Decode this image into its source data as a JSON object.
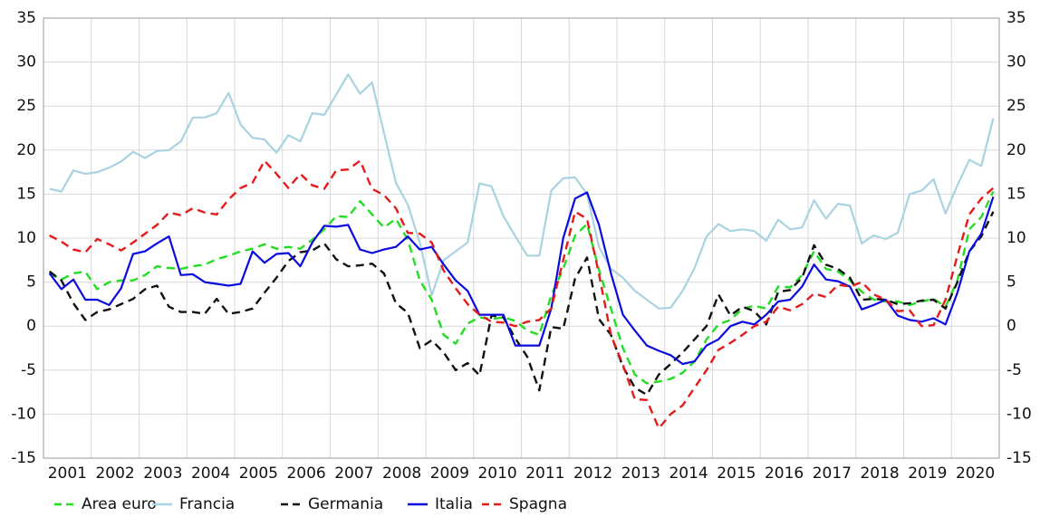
{
  "chart_data": {
    "type": "line",
    "categories": [
      null,
      "2001",
      null,
      null,
      null,
      "2002",
      null,
      null,
      null,
      "2003",
      null,
      null,
      null,
      "2004",
      null,
      null,
      null,
      "2005",
      null,
      null,
      null,
      "2006",
      null,
      null,
      null,
      "2007",
      null,
      null,
      null,
      "2008",
      null,
      null,
      null,
      "2009",
      null,
      null,
      null,
      "2010",
      null,
      null,
      null,
      "2011",
      null,
      null,
      null,
      "2012",
      null,
      null,
      null,
      "2013",
      null,
      null,
      null,
      "2014",
      null,
      null,
      null,
      "2015",
      null,
      null,
      null,
      "2016",
      null,
      null,
      null,
      "2017",
      null,
      null,
      null,
      "2018",
      null,
      null,
      null,
      "2019",
      null,
      null,
      null,
      "2020",
      null,
      null
    ],
    "ylim": [
      -15,
      35
    ],
    "yticks": [
      -15,
      -10,
      -5,
      0,
      5,
      10,
      15,
      20,
      25,
      30,
      35
    ],
    "y2lim": [
      -15,
      35
    ],
    "y2ticks": [
      -15,
      -10,
      -5,
      0,
      5,
      10,
      15,
      20,
      25,
      30,
      35
    ],
    "grid": true,
    "legend": "bottom",
    "series": [
      {
        "name": "Area euro",
        "color": "#22dd22",
        "dashed": true,
        "values": [
          6,
          5.3,
          6,
          6.2,
          4.2,
          5,
          5.2,
          5.2,
          5.8,
          6.8,
          6.6,
          6.5,
          6.8,
          7,
          7.6,
          8,
          8.5,
          8.8,
          9.3,
          8.8,
          9,
          8.8,
          9.8,
          11,
          12.5,
          12.4,
          14.2,
          12.7,
          11.2,
          12.2,
          9.8,
          5.2,
          3,
          -1,
          -2,
          0.3,
          1,
          0.8,
          1,
          0.6,
          -0.5,
          -1,
          3.5,
          6.5,
          10.3,
          11.6,
          6.4,
          2,
          -2.5,
          -5.5,
          -6.5,
          -6.3,
          -6,
          -5.3,
          -4,
          -1.5,
          0.2,
          0.7,
          2,
          2.3,
          2,
          4.5,
          4.4,
          5.8,
          8.5,
          6.5,
          6.2,
          5.2,
          3.9,
          3,
          2.8,
          2.8,
          2.4,
          2.8,
          3.1,
          2.2,
          5.2,
          11,
          12.4,
          15.3
        ]
      },
      {
        "name": "Francia",
        "color": "#a9d3e0",
        "dashed": false,
        "values": [
          15.6,
          15.3,
          17.7,
          17.3,
          17.5,
          18,
          18.7,
          19.8,
          19.1,
          19.9,
          20,
          21,
          23.7,
          23.7,
          24.2,
          26.5,
          22.9,
          21.4,
          21.2,
          19.7,
          21.7,
          21,
          24.2,
          24,
          26.3,
          28.6,
          26.4,
          27.7,
          22,
          16.3,
          13.8,
          9.5,
          3.5,
          7.5,
          8.5,
          9.5,
          16.2,
          15.9,
          12.5,
          10.2,
          8,
          8,
          15.4,
          16.8,
          16.9,
          15,
          9,
          6.5,
          5.5,
          4,
          3,
          2,
          2.1,
          4,
          6.6,
          10.2,
          11.6,
          10.8,
          11,
          10.8,
          9.7,
          12.1,
          11,
          11.2,
          14.3,
          12.2,
          13.9,
          13.7,
          9.4,
          10.3,
          9.9,
          10.6,
          15,
          15.4,
          16.7,
          12.8,
          16,
          18.9,
          18.2,
          23.6
        ]
      },
      {
        "name": "Germania",
        "color": "#111111",
        "dashed": true,
        "values": [
          6.2,
          5.2,
          2.6,
          0.7,
          1.6,
          1.9,
          2.5,
          3.1,
          4.2,
          4.6,
          2.2,
          1.6,
          1.6,
          1.4,
          3.1,
          1.4,
          1.6,
          2,
          3.8,
          5.5,
          7.4,
          8.4,
          8.6,
          9.4,
          7.6,
          6.8,
          6.9,
          7.1,
          6,
          2.6,
          1.5,
          -2.5,
          -1.6,
          -3,
          -5,
          -4.2,
          -5.6,
          1.2,
          1,
          -1.4,
          -3.5,
          -7.3,
          -0.1,
          -0.3,
          5.4,
          7.8,
          0.8,
          -1,
          -4.6,
          -7,
          -7.8,
          -5.5,
          -4.3,
          -3,
          -1.5,
          0,
          3.6,
          1.2,
          2.2,
          1.7,
          0.2,
          3.9,
          4.1,
          5.5,
          9.2,
          7,
          6.5,
          5.5,
          3,
          3.1,
          3,
          2.5,
          2.6,
          2.9,
          3,
          2,
          5,
          8.5,
          10.2,
          13
        ]
      },
      {
        "name": "Italia",
        "color": "#0a0ae0",
        "dashed": false,
        "values": [
          6,
          4.2,
          5.3,
          3,
          3,
          2.4,
          4.3,
          8.2,
          8.5,
          9.4,
          10.2,
          5.8,
          5.9,
          5,
          4.8,
          4.6,
          4.8,
          8.5,
          7.2,
          8.2,
          8.3,
          6.8,
          9.5,
          11.4,
          11.3,
          11.5,
          8.7,
          8.3,
          8.7,
          9,
          10.2,
          8.7,
          9,
          7,
          5.2,
          4,
          1.3,
          1.3,
          1.3,
          -2.2,
          -2.2,
          -2.2,
          2,
          10,
          14.5,
          15.2,
          11.5,
          6,
          1.3,
          -0.5,
          -2.2,
          -2.8,
          -3.3,
          -4.3,
          -4,
          -2.2,
          -1.5,
          0,
          0.5,
          0.2,
          1.3,
          2.8,
          3,
          4.5,
          7,
          5.3,
          5.1,
          4.5,
          1.9,
          2.4,
          3,
          1.2,
          0.7,
          0.5,
          0.9,
          0.2,
          3.8,
          8.5,
          10.5,
          14.7
        ]
      },
      {
        "name": "Spagna",
        "color": "#e51b1b",
        "dashed": true,
        "values": [
          10.3,
          9.6,
          8.7,
          8.4,
          9.9,
          9.3,
          8.6,
          9.5,
          10.5,
          11.5,
          12.9,
          12.6,
          13.4,
          12.9,
          12.7,
          14.4,
          15.7,
          16.3,
          18.8,
          17.3,
          15.7,
          17.3,
          16,
          15.6,
          17.7,
          17.8,
          18.8,
          15.6,
          14.9,
          13.4,
          10.6,
          10.5,
          9.5,
          6.3,
          4.3,
          2.5,
          1.3,
          0.5,
          0.4,
          0,
          0.5,
          0.7,
          2,
          7.5,
          13,
          12.2,
          5.9,
          -1,
          -4.4,
          -8.3,
          -8.4,
          -11.6,
          -10,
          -9,
          -7,
          -5,
          -2.7,
          -1.9,
          -1,
          0,
          0.5,
          2.2,
          1.8,
          2.5,
          3.7,
          3.3,
          4.7,
          4.5,
          5,
          3.6,
          3,
          1.7,
          1.8,
          0,
          0.1,
          3,
          8,
          12.7,
          14.5,
          15.7
        ]
      }
    ]
  }
}
